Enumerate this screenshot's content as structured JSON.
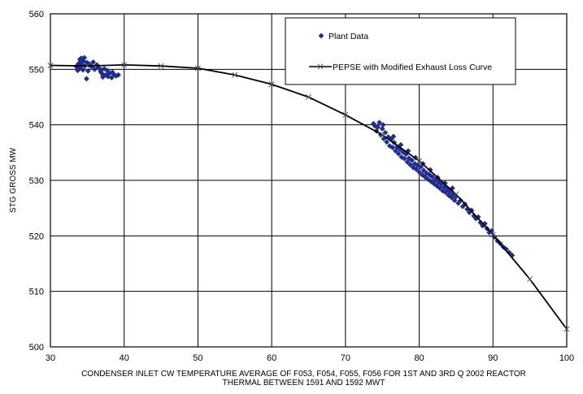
{
  "chart_data": {
    "type": "scatter",
    "xlabel_lines": [
      "CONDENSER INLET CW TEMPERATURE AVERAGE OF F053, F054, F055, F056 FOR 1ST AND 3RD Q 2002 REACTOR",
      "THERMAL BETWEEN  1591 AND 1592 MWT"
    ],
    "ylabel": "STG GROSS MW",
    "xlim": [
      30,
      100
    ],
    "ylim": [
      500,
      560
    ],
    "x_ticks": [
      "30",
      "40",
      "50",
      "60",
      "70",
      "80",
      "90",
      "100"
    ],
    "y_ticks": [
      "500",
      "510",
      "520",
      "530",
      "540",
      "550",
      "560"
    ],
    "grid": true,
    "legend_position": "top-right",
    "colors": {
      "plant": "#1f2d8f",
      "curve": "#000000",
      "grid": "#000000"
    },
    "series": [
      {
        "name": "Plant Data",
        "kind": "scatter",
        "marker": "diamond",
        "points": [
          [
            33.5,
            550.5
          ],
          [
            33.8,
            551.0
          ],
          [
            34.0,
            551.8
          ],
          [
            34.2,
            552.0
          ],
          [
            34.0,
            550.2
          ],
          [
            33.7,
            549.8
          ],
          [
            34.3,
            550.8
          ],
          [
            34.5,
            551.5
          ],
          [
            34.7,
            550.6
          ],
          [
            34.4,
            549.9
          ],
          [
            35.0,
            551.2
          ],
          [
            35.3,
            550.9
          ],
          [
            35.6,
            550.5
          ],
          [
            35.1,
            549.7
          ],
          [
            35.8,
            551.3
          ],
          [
            36.0,
            550.0
          ],
          [
            34.9,
            548.3
          ],
          [
            33.9,
            550.9
          ],
          [
            34.1,
            551.4
          ],
          [
            34.6,
            552.1
          ],
          [
            36.5,
            550.3
          ],
          [
            36.8,
            549.6
          ],
          [
            37.0,
            549.2
          ],
          [
            37.3,
            550.1
          ],
          [
            37.5,
            549.0
          ],
          [
            37.8,
            548.7
          ],
          [
            38.0,
            549.3
          ],
          [
            38.3,
            548.5
          ],
          [
            38.6,
            549.1
          ],
          [
            38.9,
            548.8
          ],
          [
            39.2,
            549.0
          ],
          [
            36.3,
            550.8
          ],
          [
            37.1,
            548.6
          ],
          [
            37.7,
            549.8
          ],
          [
            38.4,
            549.5
          ],
          [
            36.9,
            549.9
          ],
          [
            73.8,
            540.2
          ],
          [
            74.0,
            539.8
          ],
          [
            74.2,
            538.9
          ],
          [
            74.4,
            539.6
          ],
          [
            74.6,
            540.4
          ],
          [
            74.8,
            538.2
          ],
          [
            75.0,
            539.3
          ],
          [
            75.2,
            537.5
          ],
          [
            75.4,
            538.6
          ],
          [
            75.6,
            536.9
          ],
          [
            75.8,
            537.8
          ],
          [
            76.0,
            536.2
          ],
          [
            76.2,
            537.4
          ],
          [
            76.4,
            535.9
          ],
          [
            76.6,
            536.8
          ],
          [
            76.8,
            535.3
          ],
          [
            77.0,
            536.0
          ],
          [
            77.2,
            534.8
          ],
          [
            77.4,
            535.6
          ],
          [
            77.6,
            534.2
          ],
          [
            77.8,
            535.1
          ],
          [
            78.0,
            533.9
          ],
          [
            78.2,
            534.7
          ],
          [
            78.4,
            533.3
          ],
          [
            78.6,
            534.0
          ],
          [
            78.8,
            532.8
          ],
          [
            79.0,
            533.6
          ],
          [
            79.2,
            532.3
          ],
          [
            79.4,
            533.0
          ],
          [
            79.6,
            532.0
          ],
          [
            79.8,
            532.7
          ],
          [
            80.0,
            531.5
          ],
          [
            80.2,
            532.4
          ],
          [
            80.4,
            531.0
          ],
          [
            80.6,
            531.8
          ],
          [
            80.8,
            530.6
          ],
          [
            81.0,
            531.3
          ],
          [
            81.2,
            530.2
          ],
          [
            81.4,
            531.0
          ],
          [
            81.6,
            529.8
          ],
          [
            81.8,
            530.6
          ],
          [
            82.0,
            529.4
          ],
          [
            82.2,
            530.1
          ],
          [
            82.4,
            529.0
          ],
          [
            82.6,
            529.7
          ],
          [
            82.8,
            528.6
          ],
          [
            83.0,
            529.3
          ],
          [
            83.2,
            528.1
          ],
          [
            83.4,
            528.8
          ],
          [
            83.6,
            527.8
          ],
          [
            83.8,
            528.4
          ],
          [
            84.0,
            527.3
          ],
          [
            84.2,
            528.0
          ],
          [
            84.4,
            526.9
          ],
          [
            84.6,
            527.5
          ],
          [
            84.8,
            526.4
          ],
          [
            85.0,
            527.1
          ],
          [
            85.3,
            525.9
          ],
          [
            85.6,
            526.4
          ],
          [
            85.9,
            525.3
          ],
          [
            86.2,
            525.7
          ],
          [
            86.5,
            524.8
          ],
          [
            86.8,
            524.2
          ],
          [
            87.1,
            524.6
          ],
          [
            87.4,
            523.6
          ],
          [
            87.7,
            523.1
          ],
          [
            88.0,
            523.4
          ],
          [
            88.3,
            522.4
          ],
          [
            88.6,
            521.8
          ],
          [
            88.9,
            522.2
          ],
          [
            89.2,
            521.3
          ],
          [
            89.5,
            520.6
          ],
          [
            89.8,
            520.9
          ],
          [
            90.2,
            519.8
          ],
          [
            90.6,
            519.1
          ],
          [
            91.0,
            518.6
          ],
          [
            91.4,
            518.0
          ],
          [
            91.8,
            517.6
          ],
          [
            92.2,
            517.0
          ],
          [
            92.6,
            516.5
          ],
          [
            80.5,
            533.0
          ],
          [
            81.5,
            531.9
          ],
          [
            82.5,
            530.5
          ],
          [
            83.5,
            529.5
          ],
          [
            78.5,
            535.3
          ],
          [
            76.5,
            537.9
          ],
          [
            75.1,
            540.0
          ],
          [
            79.5,
            534.1
          ],
          [
            77.5,
            536.4
          ],
          [
            84.5,
            528.6
          ]
        ]
      },
      {
        "name": "PEPSE with Modified Exhaust Loss Curve",
        "kind": "line",
        "marker": "x",
        "points": [
          [
            30,
            550.7
          ],
          [
            35,
            550.6
          ],
          [
            40,
            550.8
          ],
          [
            45,
            550.6
          ],
          [
            50,
            550.2
          ],
          [
            55,
            549.0
          ],
          [
            60,
            547.3
          ],
          [
            65,
            545.0
          ],
          [
            70,
            541.8
          ],
          [
            75,
            538.2
          ],
          [
            80,
            533.5
          ],
          [
            85,
            527.5
          ],
          [
            90,
            520.2
          ],
          [
            95,
            512.2
          ],
          [
            100,
            503.2
          ]
        ]
      }
    ]
  }
}
